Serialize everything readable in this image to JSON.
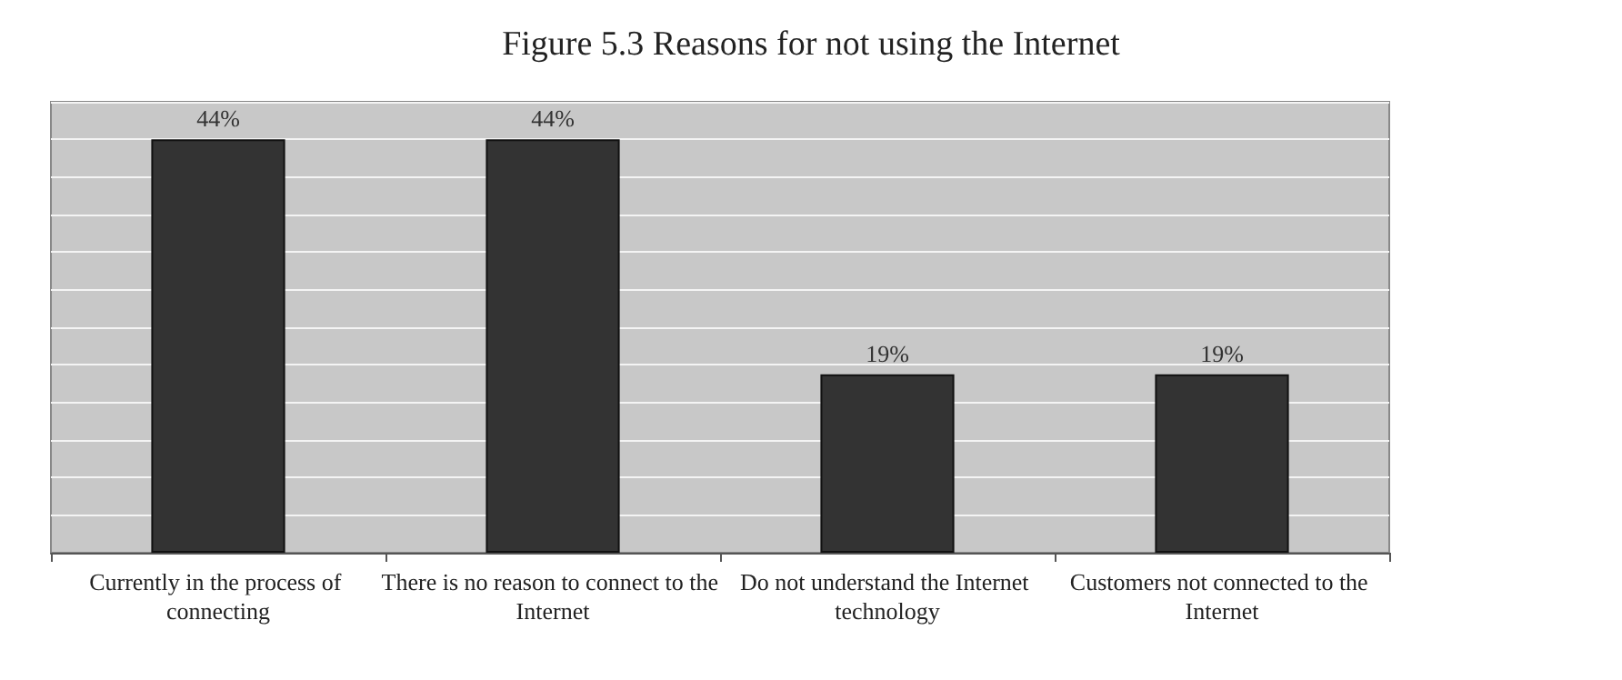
{
  "chart_data": {
    "type": "bar",
    "title": "Figure 5.3 Reasons for not using the Internet",
    "categories": [
      "Currently in the process of connecting",
      "There is no reason to connect to the Internet",
      "Do not understand the Internet technology",
      "Customers not connected to the Internet"
    ],
    "values": [
      44,
      44,
      19,
      19
    ],
    "color": "#333333",
    "value_labels": [
      "44%",
      "44%",
      "19%",
      "19%"
    ],
    "ylim": [
      0,
      48
    ],
    "yticks": [
      {
        "value": 0,
        "label": null
      },
      {
        "value": 4,
        "label": null
      },
      {
        "value": 8,
        "label": null
      },
      {
        "value": 12,
        "label": null
      },
      {
        "value": 16,
        "label": null
      },
      {
        "value": 20,
        "label": null
      },
      {
        "value": 24,
        "label": null
      },
      {
        "value": 28,
        "label": null
      },
      {
        "value": 32,
        "label": null
      },
      {
        "value": 36,
        "label": null
      },
      {
        "value": 40,
        "label": null
      },
      {
        "value": 44,
        "label": null
      },
      {
        "value": 48,
        "label": null
      }
    ],
    "grid": "y",
    "tick_labels": "x"
  }
}
